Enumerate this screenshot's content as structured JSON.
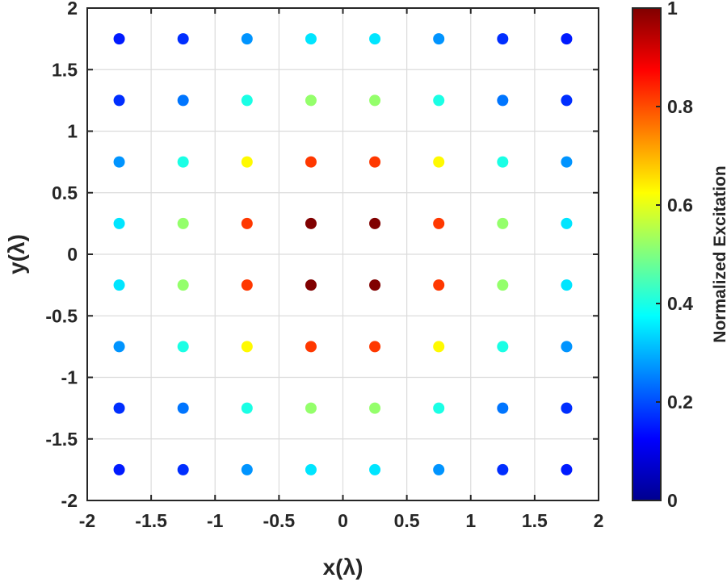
{
  "chart_data": {
    "type": "scatter",
    "xlabel": "x(λ)",
    "ylabel": "y(λ)",
    "xlim": [
      -2,
      2
    ],
    "ylim": [
      -2,
      2
    ],
    "xticks": [
      "-2",
      "-1.5",
      "-1",
      "-0.5",
      "0",
      "0.5",
      "1",
      "1.5",
      "2"
    ],
    "yticks": [
      "-2",
      "-1.5",
      "-1",
      "-0.5",
      "0",
      "0.5",
      "1",
      "1.5",
      "2"
    ],
    "grid": true,
    "colormap": "jet",
    "colorbar": {
      "label": "Normalized  Excitation",
      "range": [
        0,
        1
      ],
      "ticks": [
        "0",
        "0.2",
        "0.4",
        "0.6",
        "0.8",
        "1"
      ]
    },
    "positions": [
      -1.75,
      -1.25,
      -0.75,
      -0.25,
      0.25,
      0.75,
      1.25,
      1.75
    ],
    "excitation_rows_top_to_bottom": [
      [
        0.15,
        0.17,
        0.27,
        0.35,
        0.35,
        0.27,
        0.17,
        0.15
      ],
      [
        0.17,
        0.24,
        0.4,
        0.52,
        0.52,
        0.4,
        0.24,
        0.17
      ],
      [
        0.27,
        0.4,
        0.63,
        0.82,
        0.82,
        0.63,
        0.4,
        0.27
      ],
      [
        0.35,
        0.52,
        0.82,
        1.0,
        1.0,
        0.82,
        0.52,
        0.35
      ],
      [
        0.35,
        0.52,
        0.82,
        1.0,
        1.0,
        0.82,
        0.52,
        0.35
      ],
      [
        0.27,
        0.4,
        0.63,
        0.82,
        0.82,
        0.63,
        0.4,
        0.27
      ],
      [
        0.17,
        0.24,
        0.4,
        0.52,
        0.52,
        0.4,
        0.24,
        0.17
      ],
      [
        0.15,
        0.17,
        0.27,
        0.35,
        0.35,
        0.27,
        0.17,
        0.15
      ]
    ]
  }
}
